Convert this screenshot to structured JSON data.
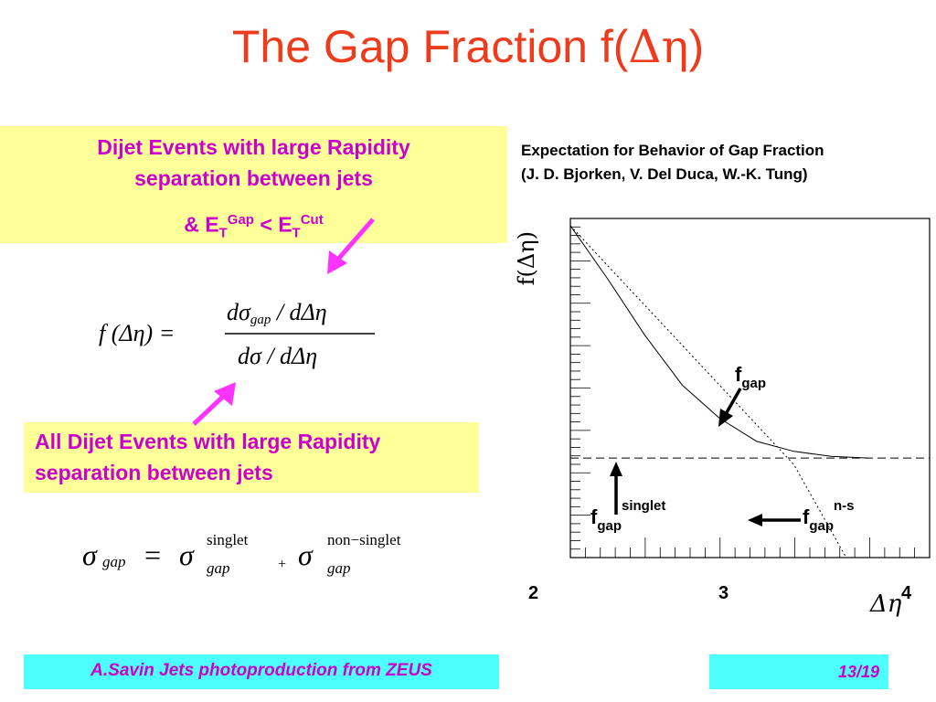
{
  "title": {
    "text": "The Gap Fraction f(",
    "symbol": "Δη",
    "close": ")"
  },
  "box1": {
    "line1": "Dijet Events with large Rapidity",
    "line2": "separation between jets",
    "line3": {
      "amp": "& E",
      "sub1": "T",
      "sup1": "Gap",
      "lt": " < E",
      "sub2": "T",
      "sup2": "Cut"
    }
  },
  "box2": {
    "line1": "All Dijet Events with large Rapidity",
    "line2": "separation between jets"
  },
  "eq1": {
    "lhs": "f (Δη) =",
    "num": "dσ",
    "num_sub": "gap",
    "num_rest": " / dΔη",
    "den": "dσ / dΔη"
  },
  "eq2": {
    "lhs": "σ",
    "lhs_sub": "gap",
    "eq": "=",
    "s1": "σ",
    "s1_sup": "singlet",
    "s1_sub": "gap",
    "plus": "+",
    "s2": "σ",
    "s2_sup": "non−singlet",
    "s2_sub": "gap"
  },
  "caption": {
    "line1": "Expectation for Behavior of Gap Fraction",
    "line2": "(J. D. Bjorken, V. Del Duca, W.-K. Tung)"
  },
  "chart_data": {
    "type": "line",
    "ylabel": "f(Δη)",
    "xlabel": "Δη",
    "x_ticks": [
      "2",
      "3",
      "4"
    ],
    "xlim": [
      2,
      4
    ],
    "series": [
      {
        "name": "f_gap",
        "style": "solid",
        "x": [
          2.0,
          2.25,
          2.5,
          2.75,
          3.0,
          3.25,
          3.5,
          3.75,
          4.0
        ],
        "y": [
          1.0,
          0.84,
          0.67,
          0.52,
          0.42,
          0.35,
          0.32,
          0.305,
          0.3
        ]
      },
      {
        "name": "f_gap singlet",
        "style": "dashed",
        "x": [
          2.0,
          4.0
        ],
        "y": [
          0.3,
          0.3
        ]
      },
      {
        "name": "f_gap n-s",
        "style": "dotted",
        "x": [
          2.0,
          3.0,
          3.5,
          3.85
        ],
        "y": [
          1.0,
          0.52,
          0.28,
          0.0
        ]
      }
    ],
    "annotations": [
      {
        "text": "f",
        "sub": "gap",
        "sup": ""
      },
      {
        "text": "f",
        "sub": "gap",
        "sup": "singlet"
      },
      {
        "text": "f",
        "sub": "gap",
        "sup": "n-s"
      }
    ]
  },
  "footer": {
    "left": "A.Savin Jets photoproduction from ZEUS",
    "right": "13/19"
  },
  "colors": {
    "title": "#ee3b1c",
    "magenta": "#cc00cc",
    "yellow": "#ffff99",
    "cyan": "#4dffff",
    "arrow": "#ff33ff"
  }
}
